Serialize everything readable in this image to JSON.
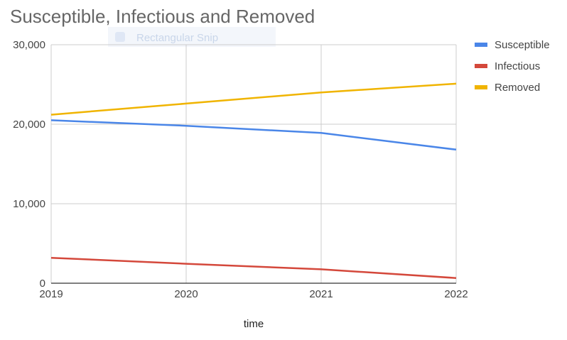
{
  "overlay": {
    "label": "Rectangular Snip"
  },
  "chart_data": {
    "type": "line",
    "title": "Susceptible, Infectious and Removed",
    "xlabel": "time",
    "ylabel": "",
    "x": [
      "2019",
      "2020",
      "2021",
      "2022"
    ],
    "ylim": [
      0,
      30000
    ],
    "yticks": [
      "0",
      "10,000",
      "20,000",
      "30,000"
    ],
    "grid": true,
    "legend_position": "right",
    "series": [
      {
        "name": "Susceptible",
        "color": "#4a86e8",
        "values": [
          20500,
          19800,
          18900,
          16800
        ]
      },
      {
        "name": "Infectious",
        "color": "#d4483b",
        "values": [
          3200,
          2450,
          1750,
          650
        ]
      },
      {
        "name": "Removed",
        "color": "#f0b400",
        "values": [
          21200,
          22600,
          24000,
          25100
        ]
      }
    ]
  }
}
